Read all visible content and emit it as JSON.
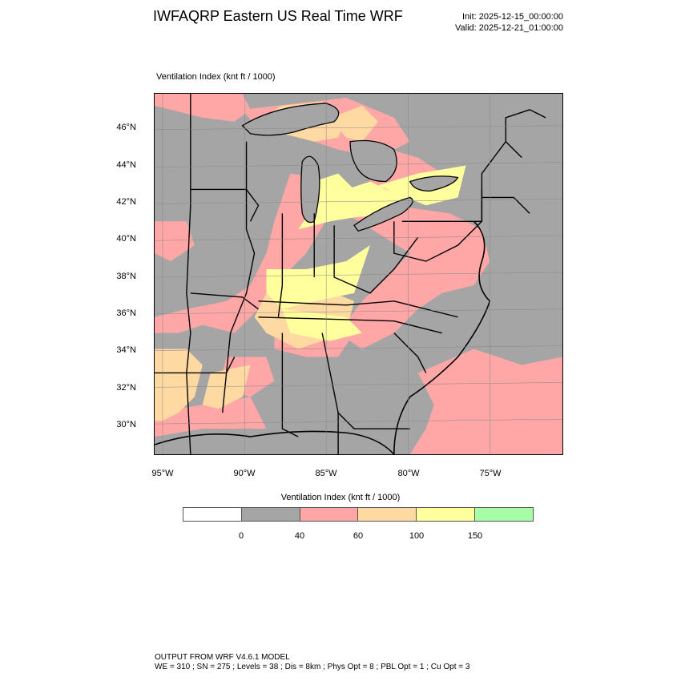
{
  "header": {
    "title": "IWFAQRP Eastern US Real Time WRF",
    "init": "Init: 2025-12-15_00:00:00",
    "valid": "Valid: 2025-12-21_01:00:00"
  },
  "plot": {
    "label": "Ventilation Index   (knt ft / 1000)"
  },
  "axes": {
    "lat_labels": [
      "46°N",
      "44°N",
      "42°N",
      "40°N",
      "38°N",
      "36°N",
      "34°N",
      "32°N",
      "30°N"
    ],
    "lon_labels": [
      "95°W",
      "90°W",
      "85°W",
      "80°W",
      "75°W"
    ]
  },
  "colorbar": {
    "title": "Ventilation Index  (knt ft / 1000)",
    "colors": [
      "#ffffff",
      "#a5a5a5",
      "#ffa6a6",
      "#ffd9a2",
      "#ffff9e",
      "#a6ffa6"
    ],
    "ticks": [
      "0",
      "40",
      "60",
      "100",
      "150"
    ]
  },
  "footer": {
    "line1": "OUTPUT FROM WRF V4.6.1 MODEL",
    "line2": "WE = 310 ; SN = 275 ; Levels = 38 ; Dis = 8km ; Phys Opt = 8 ; PBL Opt = 1 ; Cu Opt = 3"
  }
}
